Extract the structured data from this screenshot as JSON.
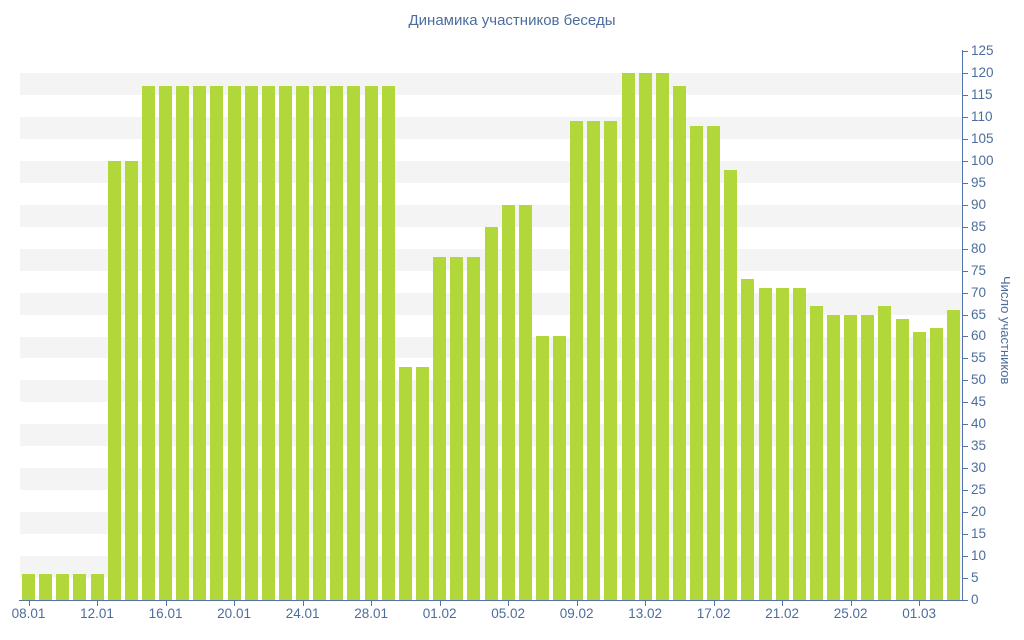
{
  "title": "Динамика участников беседы",
  "colors": {
    "bar": "#b2d73a",
    "stripe": "#f4f4f4",
    "axis_line": "#5374ab",
    "text": "#4c6d9c",
    "background": "#ffffff"
  },
  "chart_data": {
    "type": "bar",
    "title": "Динамика участников беседы",
    "xlabel": "",
    "ylabel": "Число участников",
    "ylim": [
      0,
      125
    ],
    "ytick_step": 5,
    "ytick_labels": [
      "0",
      "5",
      "10",
      "15",
      "20",
      "25",
      "30",
      "35",
      "40",
      "45",
      "50",
      "55",
      "60",
      "65",
      "70",
      "75",
      "80",
      "85",
      "90",
      "95",
      "100",
      "105",
      "110",
      "115",
      "120",
      "125"
    ],
    "grid": "horizontal-stripes-every-5",
    "legend": "none",
    "bar_color": "#b2d73a",
    "categories": [
      "08.01",
      "09.01",
      "10.01",
      "11.01",
      "12.01",
      "13.01",
      "14.01",
      "15.01",
      "16.01",
      "17.01",
      "18.01",
      "19.01",
      "20.01",
      "21.01",
      "22.01",
      "23.01",
      "24.01",
      "25.01",
      "26.01",
      "27.01",
      "28.01",
      "29.01",
      "30.01",
      "31.01",
      "01.02",
      "02.02",
      "03.02",
      "04.02",
      "05.02",
      "06.02",
      "07.02",
      "08.02",
      "09.02",
      "10.02",
      "11.02",
      "12.02",
      "13.02",
      "14.02",
      "15.02",
      "16.02",
      "17.02",
      "18.02",
      "19.02",
      "20.02",
      "21.02",
      "22.02",
      "23.02",
      "24.02",
      "25.02",
      "26.02",
      "27.02",
      "28.02",
      "01.03",
      "02.03",
      "03.03"
    ],
    "values": [
      6,
      6,
      6,
      6,
      6,
      100,
      100,
      117,
      117,
      117,
      117,
      117,
      117,
      117,
      117,
      117,
      117,
      117,
      117,
      117,
      117,
      117,
      53,
      53,
      78,
      78,
      78,
      85,
      90,
      90,
      60,
      60,
      109,
      109,
      109,
      120,
      120,
      120,
      117,
      108,
      108,
      98,
      73,
      71,
      71,
      71,
      67,
      65,
      65,
      65,
      67,
      64,
      61,
      62,
      66
    ],
    "xtick_labels": [
      "08.01",
      "12.01",
      "16.01",
      "20.01",
      "24.01",
      "28.01",
      "01.02",
      "05.02",
      "09.02",
      "13.02",
      "17.02",
      "21.02",
      "25.02",
      "01.03"
    ],
    "xtick_indices": [
      0,
      4,
      8,
      12,
      16,
      20,
      24,
      28,
      32,
      36,
      40,
      44,
      48,
      52
    ]
  }
}
